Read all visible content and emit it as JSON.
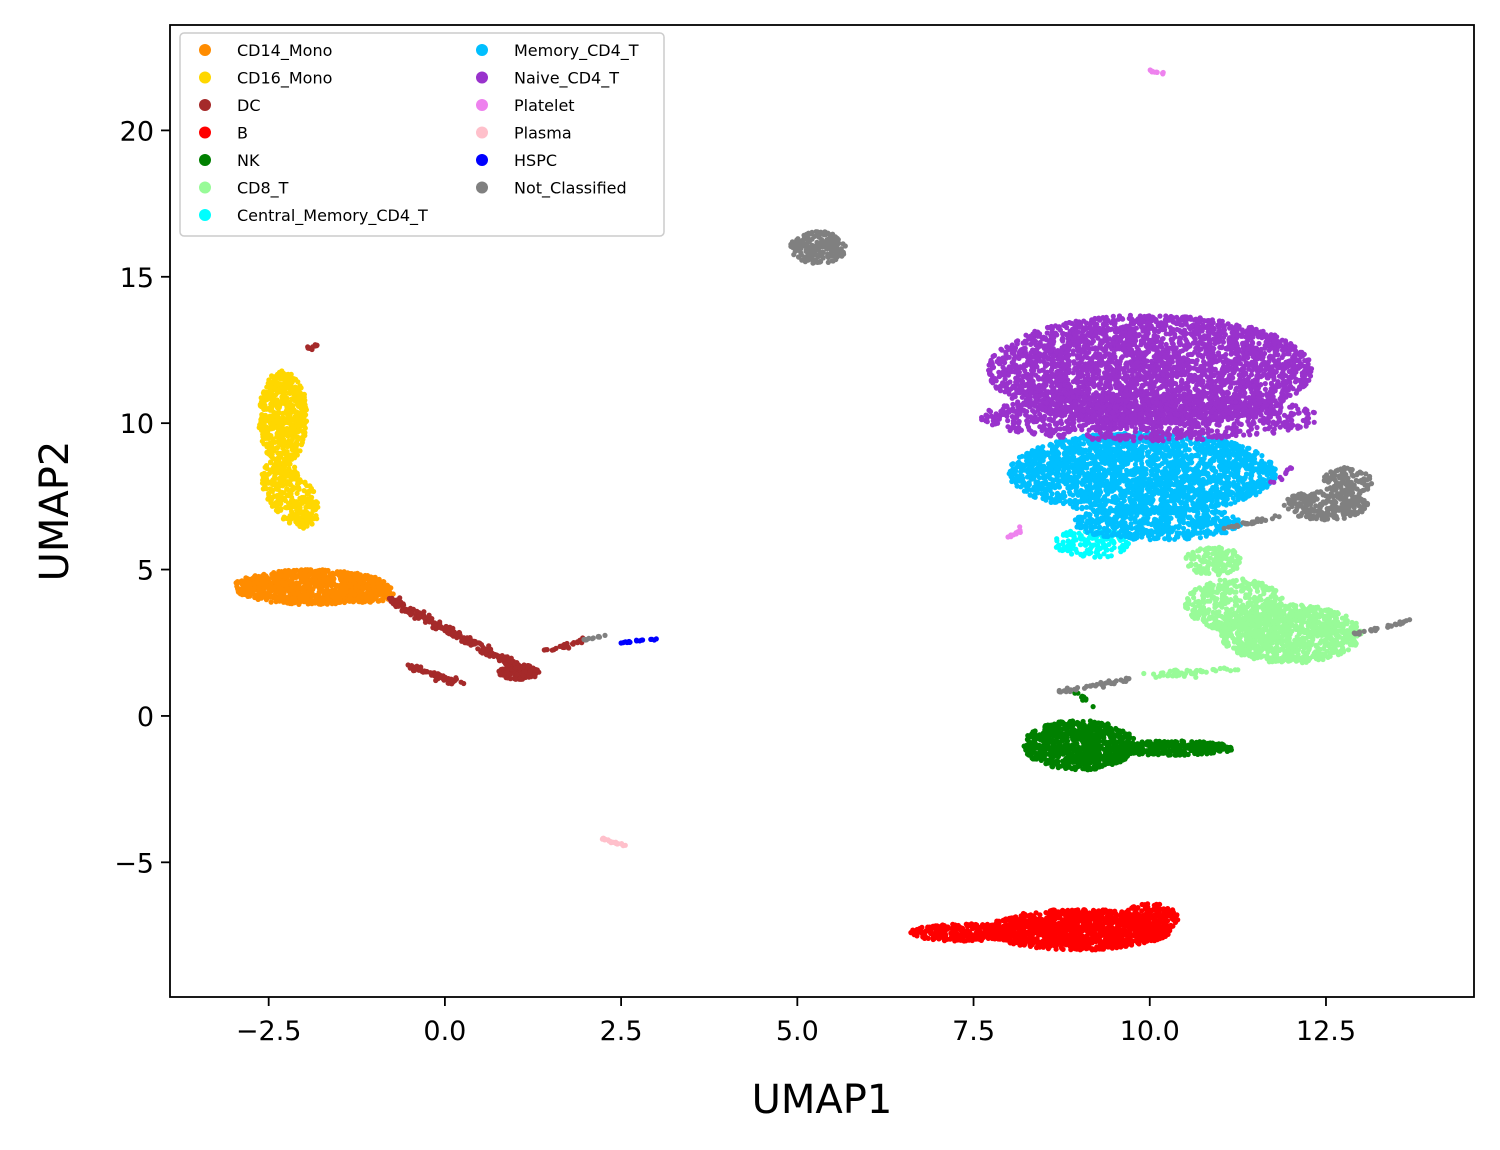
{
  "chart_data": {
    "type": "scatter",
    "title": "",
    "xlabel": "UMAP1",
    "ylabel": "UMAP2",
    "xlim": [
      -3.9,
      14.6
    ],
    "ylim": [
      -9.6,
      23.6
    ],
    "xticks": [
      -2.5,
      0.0,
      2.5,
      5.0,
      7.5,
      10.0,
      12.5
    ],
    "xtick_labels": [
      "−2.5",
      "0.0",
      "2.5",
      "5.0",
      "7.5",
      "10.0",
      "12.5"
    ],
    "yticks": [
      -5,
      0,
      5,
      10,
      15,
      20
    ],
    "ytick_labels": [
      "−5",
      "0",
      "5",
      "10",
      "15",
      "20"
    ],
    "grid": false,
    "legend_position": "upper-left",
    "legend_columns": 2,
    "series": [
      {
        "name": "CD14_Mono",
        "color": "#ff8c00",
        "clusters": [
          {
            "shape": "ellipse",
            "cx": -1.9,
            "cy": 4.4,
            "rx": 1.1,
            "ry": 0.6,
            "rot": 0,
            "n": 900
          },
          {
            "shape": "ellipse",
            "cx": -1.2,
            "cy": 4.2,
            "rx": 0.5,
            "ry": 0.35,
            "rot": 0,
            "n": 200
          }
        ]
      },
      {
        "name": "CD16_Mono",
        "color": "#ffd700",
        "clusters": [
          {
            "shape": "ellipse",
            "cx": -2.3,
            "cy": 10.2,
            "rx": 0.35,
            "ry": 1.6,
            "rot": 0,
            "n": 500
          },
          {
            "shape": "ellipse",
            "cx": -2.2,
            "cy": 7.6,
            "rx": 0.35,
            "ry": 1.2,
            "rot": 10,
            "n": 300
          }
        ]
      },
      {
        "name": "DC",
        "color": "#a52a2a",
        "clusters": [
          {
            "shape": "line",
            "x1": -0.8,
            "y1": 4.0,
            "x2": 1.1,
            "y2": 1.6,
            "w": 0.1,
            "n": 260
          },
          {
            "shape": "ellipse",
            "cx": 1.05,
            "cy": 1.5,
            "rx": 0.3,
            "ry": 0.25,
            "rot": 0,
            "n": 150
          },
          {
            "shape": "line",
            "x1": -0.5,
            "y1": 1.7,
            "x2": 0.2,
            "y2": 1.1,
            "w": 0.08,
            "n": 70
          },
          {
            "shape": "line",
            "x1": 1.4,
            "y1": 2.2,
            "x2": 2.0,
            "y2": 2.6,
            "w": 0.08,
            "n": 25
          },
          {
            "shape": "line",
            "x1": -1.95,
            "y1": 12.55,
            "x2": -1.8,
            "y2": 12.7,
            "w": 0.04,
            "n": 12
          }
        ]
      },
      {
        "name": "B",
        "color": "#ff0000",
        "clusters": [
          {
            "shape": "ellipse",
            "cx": 9.0,
            "cy": -7.3,
            "rx": 1.3,
            "ry": 0.7,
            "rot": 0,
            "n": 1200
          },
          {
            "shape": "ellipse",
            "cx": 7.4,
            "cy": -7.4,
            "rx": 0.8,
            "ry": 0.3,
            "rot": 0,
            "n": 300
          },
          {
            "shape": "ellipse",
            "cx": 10.0,
            "cy": -6.9,
            "rx": 0.4,
            "ry": 0.5,
            "rot": 0,
            "n": 200
          }
        ]
      },
      {
        "name": "NK",
        "color": "#008000",
        "clusters": [
          {
            "shape": "ellipse",
            "cx": 9.0,
            "cy": -1.0,
            "rx": 0.8,
            "ry": 0.85,
            "rot": 0,
            "n": 800
          },
          {
            "shape": "ellipse",
            "cx": 10.3,
            "cy": -1.1,
            "rx": 0.9,
            "ry": 0.25,
            "rot": 0,
            "n": 300
          },
          {
            "shape": "line",
            "x1": 9.2,
            "y1": 0.3,
            "x2": 8.9,
            "y2": 0.9,
            "w": 0.05,
            "n": 10
          }
        ]
      },
      {
        "name": "CD8_T",
        "color": "#98fb98",
        "clusters": [
          {
            "shape": "ellipse",
            "cx": 12.0,
            "cy": 2.8,
            "rx": 1.0,
            "ry": 1.0,
            "rot": 0,
            "n": 900
          },
          {
            "shape": "ellipse",
            "cx": 11.2,
            "cy": 3.8,
            "rx": 0.7,
            "ry": 0.9,
            "rot": 0,
            "n": 400
          },
          {
            "shape": "ellipse",
            "cx": 10.9,
            "cy": 5.3,
            "rx": 0.4,
            "ry": 0.5,
            "rot": 0,
            "n": 150
          },
          {
            "shape": "line",
            "x1": 10.0,
            "y1": 1.4,
            "x2": 11.2,
            "y2": 1.6,
            "w": 0.1,
            "n": 50
          }
        ]
      },
      {
        "name": "Central_Memory_CD4_T",
        "color": "#00ffff",
        "clusters": [
          {
            "shape": "ellipse",
            "cx": 9.2,
            "cy": 5.9,
            "rx": 0.55,
            "ry": 0.5,
            "rot": 0,
            "n": 150
          }
        ]
      },
      {
        "name": "Memory_CD4_T",
        "color": "#00bfff",
        "clusters": [
          {
            "shape": "ellipse",
            "cx": 9.9,
            "cy": 8.3,
            "rx": 1.9,
            "ry": 1.4,
            "rot": 0,
            "n": 2200
          },
          {
            "shape": "ellipse",
            "cx": 10.1,
            "cy": 6.6,
            "rx": 1.2,
            "ry": 0.6,
            "rot": 0,
            "n": 500
          }
        ]
      },
      {
        "name": "Naive_CD4_T",
        "color": "#9932cc",
        "clusters": [
          {
            "shape": "ellipse",
            "cx": 10.0,
            "cy": 11.8,
            "rx": 2.3,
            "ry": 1.9,
            "rot": 0,
            "n": 3200
          },
          {
            "shape": "ellipse",
            "cx": 10.0,
            "cy": 10.2,
            "rx": 2.4,
            "ry": 0.8,
            "rot": 0,
            "n": 900
          },
          {
            "shape": "line",
            "x1": 11.7,
            "y1": 7.8,
            "x2": 12.0,
            "y2": 8.5,
            "w": 0.05,
            "n": 10
          }
        ]
      },
      {
        "name": "Platelet",
        "color": "#ee82ee",
        "clusters": [
          {
            "shape": "line",
            "x1": 8.0,
            "y1": 6.1,
            "x2": 8.25,
            "y2": 6.5,
            "w": 0.04,
            "n": 12
          },
          {
            "shape": "line",
            "x1": 10.0,
            "y1": 22.05,
            "x2": 10.2,
            "y2": 21.95,
            "w": 0.03,
            "n": 10
          }
        ]
      },
      {
        "name": "Plasma",
        "color": "#ffc0cb",
        "clusters": [
          {
            "shape": "line",
            "x1": 2.2,
            "y1": -4.15,
            "x2": 2.55,
            "y2": -4.45,
            "w": 0.03,
            "n": 20
          }
        ]
      },
      {
        "name": "HSPC",
        "color": "#0000ff",
        "clusters": [
          {
            "shape": "line",
            "x1": 2.5,
            "y1": 2.5,
            "x2": 3.05,
            "y2": 2.65,
            "w": 0.03,
            "n": 20
          }
        ]
      },
      {
        "name": "Not_Classified",
        "color": "#808080",
        "clusters": [
          {
            "shape": "ellipse",
            "cx": 5.3,
            "cy": 16.0,
            "rx": 0.4,
            "ry": 0.55,
            "rot": 0,
            "n": 200
          },
          {
            "shape": "ellipse",
            "cx": 12.5,
            "cy": 7.2,
            "rx": 0.6,
            "ry": 0.5,
            "rot": 0,
            "n": 250
          },
          {
            "shape": "ellipse",
            "cx": 12.8,
            "cy": 8.0,
            "rx": 0.35,
            "ry": 0.5,
            "rot": 0,
            "n": 100
          },
          {
            "shape": "line",
            "x1": 12.9,
            "y1": 2.8,
            "x2": 13.7,
            "y2": 3.25,
            "w": 0.05,
            "n": 30
          },
          {
            "shape": "line",
            "x1": 8.7,
            "y1": 0.8,
            "x2": 9.8,
            "y2": 1.3,
            "w": 0.07,
            "n": 40
          },
          {
            "shape": "line",
            "x1": 2.0,
            "y1": 2.6,
            "x2": 2.25,
            "y2": 2.75,
            "w": 0.05,
            "n": 12
          },
          {
            "shape": "line",
            "x1": 11.0,
            "y1": 6.4,
            "x2": 11.8,
            "y2": 6.8,
            "w": 0.06,
            "n": 30
          }
        ]
      }
    ]
  }
}
